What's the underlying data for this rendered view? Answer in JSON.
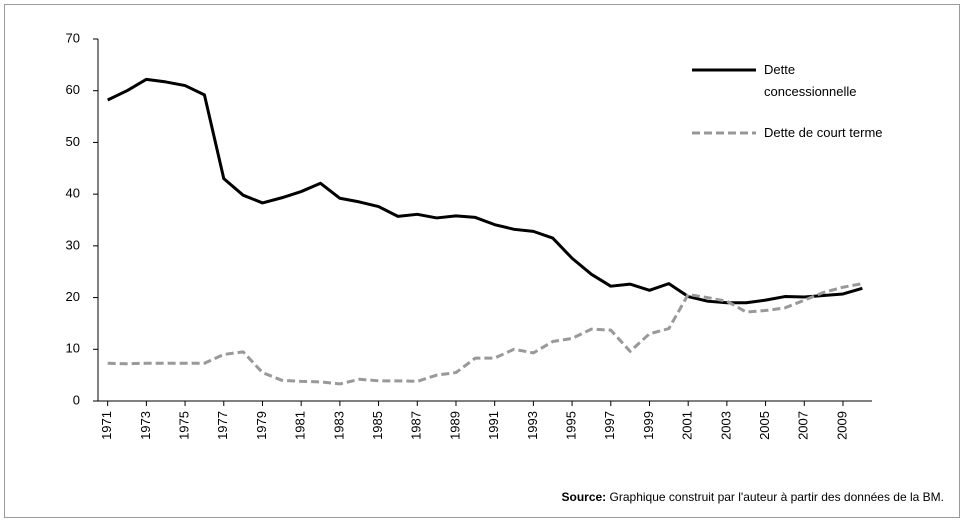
{
  "chart_data": {
    "type": "line",
    "source_label": "Source:",
    "source": "Graphique construit par l'auteur à partir des données de la BM.",
    "x": [
      1971,
      1972,
      1973,
      1974,
      1975,
      1976,
      1977,
      1978,
      1979,
      1980,
      1981,
      1982,
      1983,
      1984,
      1985,
      1986,
      1987,
      1988,
      1989,
      1990,
      1991,
      1992,
      1993,
      1994,
      1995,
      1996,
      1997,
      1998,
      1999,
      2000,
      2001,
      2002,
      2003,
      2004,
      2005,
      2006,
      2007,
      2008,
      2009,
      2010
    ],
    "xlim": [
      1970.5,
      2010.5
    ],
    "xticks": [
      1971,
      1973,
      1975,
      1977,
      1979,
      1981,
      1983,
      1985,
      1987,
      1989,
      1991,
      1993,
      1995,
      1997,
      1999,
      2001,
      2003,
      2005,
      2007,
      2009
    ],
    "ylim": [
      0,
      70
    ],
    "yticks": [
      0,
      10,
      20,
      30,
      40,
      50,
      60,
      70
    ],
    "series": [
      {
        "name": "Dette concessionnelle",
        "color": "#000000",
        "dash": false,
        "values": [
          58.2,
          60,
          62.2,
          61.7,
          61,
          59.2,
          43,
          39.8,
          38.3,
          39.3,
          40.5,
          42.1,
          39.2,
          38.5,
          37.6,
          35.7,
          36.1,
          35.4,
          35.8,
          35.5,
          34.1,
          33.2,
          32.8,
          31.5,
          27.6,
          24.5,
          22.2,
          22.6,
          21.4,
          22.7,
          20.2,
          19.3,
          19,
          19,
          19.5,
          20.2,
          20.1,
          20.4,
          20.7,
          21.8
        ]
      },
      {
        "name": "Dette de court terme",
        "color": "#999999",
        "dash": true,
        "values": [
          7.3,
          7.2,
          7.3,
          7.3,
          7.3,
          7.3,
          9,
          9.5,
          5.5,
          4,
          3.8,
          3.7,
          3.3,
          4.2,
          3.9,
          3.9,
          3.8,
          5,
          5.5,
          8.3,
          8.3,
          10,
          9.3,
          11.5,
          12.1,
          13.9,
          13.7,
          9.6,
          13,
          14,
          20.6,
          20,
          19.3,
          17.2,
          17.5,
          18,
          19.5,
          21,
          22,
          22.7
        ]
      }
    ]
  }
}
